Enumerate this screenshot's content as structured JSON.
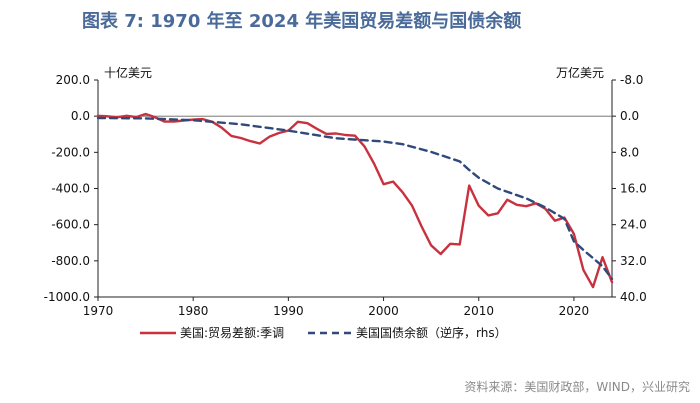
{
  "title": "图表 7: 1970 年至 2024 年美国贸易差额与国债余额",
  "source": "资料来源：美国财政部，WIND，兴业研究",
  "colors": {
    "title": "#4a6b9a",
    "trade": "#c8323f",
    "debt": "#2f4a7a"
  },
  "chart_data": {
    "type": "line",
    "xlim": [
      1970,
      2024
    ],
    "x_ticks": [
      1970,
      1980,
      1990,
      2000,
      2010,
      2020
    ],
    "left_axis": {
      "unit": "十亿美元",
      "ylim": [
        -1000,
        200
      ],
      "ticks": [
        "200.0",
        "0.0",
        "-200.0",
        "-400.0",
        "-600.0",
        "-800.0",
        "-1000.0"
      ],
      "tick_values": [
        200,
        0,
        -200,
        -400,
        -600,
        -800,
        -1000
      ]
    },
    "right_axis": {
      "unit": "万亿美元",
      "ylim": [
        -8,
        40
      ],
      "inverted": true,
      "ticks": [
        "-8.0",
        "0.0",
        "8.0",
        "16.0",
        "24.0",
        "32.0",
        "40.0"
      ],
      "tick_values": [
        -8,
        0,
        8,
        16,
        24,
        32,
        40
      ]
    },
    "series": [
      {
        "name": "美国:贸易差额:季调",
        "axis": "left",
        "style": "solid",
        "color": "#c8323f",
        "x": [
          1970,
          1971,
          1972,
          1973,
          1974,
          1975,
          1976,
          1977,
          1978,
          1979,
          1980,
          1981,
          1982,
          1983,
          1984,
          1985,
          1986,
          1987,
          1988,
          1989,
          1990,
          1991,
          1992,
          1993,
          1994,
          1995,
          1996,
          1997,
          1998,
          1999,
          2000,
          2001,
          2002,
          2003,
          2004,
          2005,
          2006,
          2007,
          2008,
          2009,
          2010,
          2011,
          2012,
          2013,
          2014,
          2015,
          2016,
          2017,
          2018,
          2019,
          2020,
          2021,
          2022,
          2023,
          2024
        ],
        "y": [
          2,
          -1,
          -6,
          2,
          -5,
          12,
          -6,
          -30,
          -30,
          -24,
          -19,
          -16,
          -31,
          -64,
          -109,
          -121,
          -138,
          -151,
          -114,
          -93,
          -80,
          -31,
          -39,
          -70,
          -98,
          -96,
          -104,
          -108,
          -167,
          -262,
          -376,
          -362,
          -421,
          -495,
          -610,
          -714,
          -762,
          -706,
          -709,
          -384,
          -495,
          -549,
          -537,
          -462,
          -490,
          -498,
          -482,
          -513,
          -578,
          -561,
          -651,
          -850,
          -945,
          -780,
          -918
        ]
      },
      {
        "name": "美国国债余额（逆序，rhs）",
        "axis": "right",
        "style": "dashed",
        "color": "#2f4a7a",
        "x": [
          1970,
          1975,
          1980,
          1985,
          1990,
          1995,
          2000,
          2002,
          2005,
          2008,
          2009,
          2010,
          2012,
          2015,
          2017,
          2019,
          2020,
          2021,
          2022,
          2023,
          2024
        ],
        "y": [
          0.4,
          0.5,
          0.9,
          1.8,
          3.2,
          4.9,
          5.6,
          6.2,
          7.9,
          10.0,
          11.9,
          13.6,
          16.0,
          18.2,
          20.2,
          22.7,
          27.7,
          29.6,
          31.4,
          33.2,
          36.0
        ]
      }
    ]
  }
}
